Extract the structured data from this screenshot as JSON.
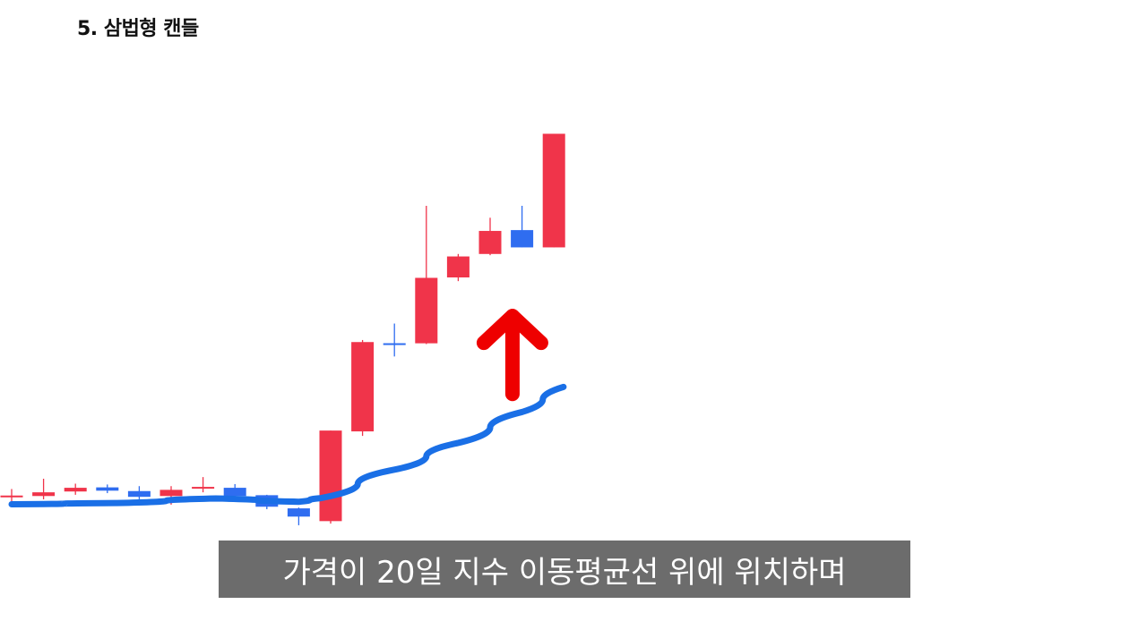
{
  "header": {
    "title": "5. 삼법형 캔들"
  },
  "caption": {
    "text": "가격이 20일 지수 이동평균선 위에 위치하며"
  },
  "colors": {
    "bullish": "#f0344a",
    "bearish": "#2f6df0",
    "ema_line": "#1a6fe6",
    "arrow": "#ee0000",
    "caption_bg": "#606060"
  },
  "chart_data": {
    "type": "candlestick",
    "title": "",
    "xlabel": "",
    "ylabel": "",
    "grid": false,
    "ylim": [
      0,
      100
    ],
    "candles": [
      {
        "open": 8.1,
        "close": 8.1,
        "high": 9.9,
        "low": 6.5,
        "color": "bullish"
      },
      {
        "open": 8.2,
        "close": 9.1,
        "high": 12.4,
        "low": 7.4,
        "color": "bullish"
      },
      {
        "open": 9.3,
        "close": 10.2,
        "high": 11.2,
        "low": 8.5,
        "color": "bullish"
      },
      {
        "open": 10.3,
        "close": 9.5,
        "high": 11.0,
        "low": 8.9,
        "color": "bearish"
      },
      {
        "open": 9.4,
        "close": 8.0,
        "high": 10.6,
        "low": 7.4,
        "color": "bearish"
      },
      {
        "open": 8.2,
        "close": 9.7,
        "high": 10.6,
        "low": 6.1,
        "color": "bullish"
      },
      {
        "open": 9.9,
        "close": 10.2,
        "high": 12.8,
        "low": 9.1,
        "color": "bullish"
      },
      {
        "open": 10.2,
        "close": 8.2,
        "high": 11.1,
        "low": 7.3,
        "color": "bearish"
      },
      {
        "open": 8.4,
        "close": 5.6,
        "high": 8.5,
        "low": 5.0,
        "color": "bearish"
      },
      {
        "open": 5.2,
        "close": 3.2,
        "high": 5.4,
        "low": 1.1,
        "color": "bearish"
      },
      {
        "open": 2.1,
        "close": 24.1,
        "high": 24.1,
        "low": 1.5,
        "color": "bullish"
      },
      {
        "open": 23.9,
        "close": 45.6,
        "high": 46.1,
        "low": 22.8,
        "color": "bullish"
      },
      {
        "open": 45.1,
        "close": 45.1,
        "high": 50.1,
        "low": 42.1,
        "color": "bearish"
      },
      {
        "open": 45.3,
        "close": 61.2,
        "high": 78.7,
        "low": 45.1,
        "color": "bullish"
      },
      {
        "open": 61.3,
        "close": 66.4,
        "high": 67.0,
        "low": 60.4,
        "color": "bullish"
      },
      {
        "open": 67.0,
        "close": 72.6,
        "high": 75.8,
        "low": 66.7,
        "color": "bullish"
      },
      {
        "open": 72.8,
        "close": 68.6,
        "high": 78.7,
        "low": 68.6,
        "color": "bearish"
      },
      {
        "open": 68.6,
        "close": 96.2,
        "high": 96.2,
        "low": 68.6,
        "color": "bullish"
      }
    ],
    "ema_line": [
      [
        0.0,
        6.2
      ],
      [
        3.3,
        6.5
      ],
      [
        6.4,
        7.6
      ],
      [
        9.0,
        6.8
      ],
      [
        9.7,
        7.7
      ],
      [
        12.0,
        14.6
      ],
      [
        14.0,
        21.1
      ],
      [
        16.0,
        28.6
      ],
      [
        17.3,
        34.7
      ]
    ],
    "annotation": {
      "type": "arrow-up",
      "x": 15.7,
      "y_from": 33.0,
      "y_to": 52.8
    }
  }
}
